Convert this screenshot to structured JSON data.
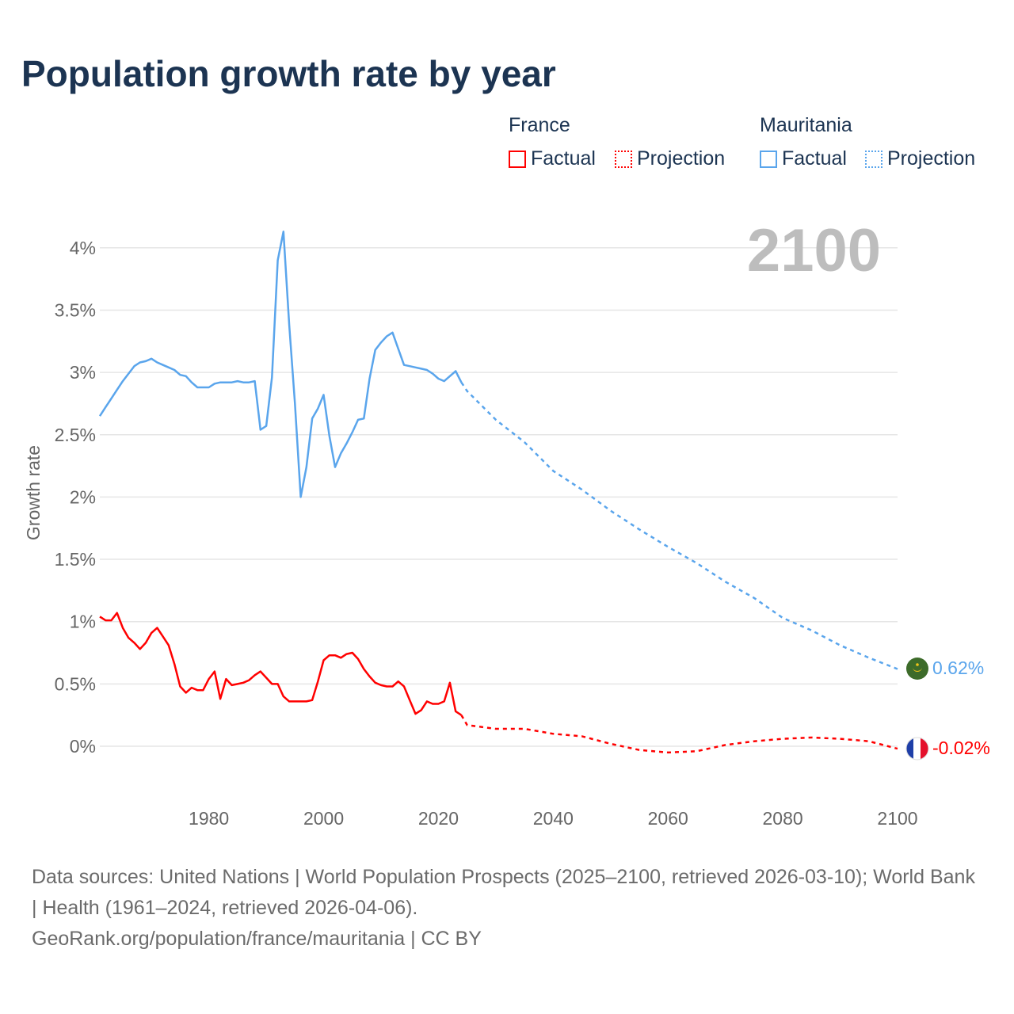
{
  "title": "Population growth rate by year",
  "legend": {
    "groups": [
      {
        "name": "France",
        "factual": "Factual",
        "projection": "Projection",
        "color": "#ff0000"
      },
      {
        "name": "Mauritania",
        "factual": "Factual",
        "projection": "Projection",
        "color": "#5aa5ec"
      }
    ]
  },
  "year_label": "2100",
  "end_labels": {
    "mauritania": "0.62%",
    "france": "-0.02%"
  },
  "source": {
    "line1": "Data sources: United Nations | World Population Prospects (2025–2100, retrieved 2026-03-10); World Bank | Health (1961–2024, retrieved 2026-04-06).",
    "line2": "GeoRank.org/population/france/mauritania | CC BY"
  },
  "chart_data": {
    "type": "line",
    "title": "Population growth rate by year",
    "xlabel": "",
    "ylabel": "Growth rate",
    "xlim": [
      1961,
      2100
    ],
    "ylim": [
      -0.25,
      4.25
    ],
    "x_ticks": [
      1980,
      2000,
      2020,
      2040,
      2060,
      2080,
      2100
    ],
    "x_tick_labels": [
      "1980",
      "2000",
      "2020",
      "2040",
      "2060",
      "2080",
      "2100"
    ],
    "y_ticks": [
      0,
      0.5,
      1,
      1.5,
      2,
      2.5,
      3,
      3.5,
      4
    ],
    "y_tick_labels": [
      "0%",
      "0.5%",
      "1%",
      "1.5%",
      "2%",
      "2.5%",
      "3%",
      "3.5%",
      "4%"
    ],
    "grid": true,
    "legend_position": "top-right",
    "series": [
      {
        "name": "Mauritania Factual",
        "color": "#5aa5ec",
        "style": "solid",
        "x": [
          1961,
          1962,
          1963,
          1964,
          1965,
          1966,
          1967,
          1968,
          1969,
          1970,
          1971,
          1972,
          1973,
          1974,
          1975,
          1976,
          1977,
          1978,
          1979,
          1980,
          1981,
          1982,
          1983,
          1984,
          1985,
          1986,
          1987,
          1988,
          1989,
          1990,
          1991,
          1992,
          1993,
          1994,
          1995,
          1996,
          1997,
          1998,
          1999,
          2000,
          2001,
          2002,
          2003,
          2004,
          2005,
          2006,
          2007,
          2008,
          2009,
          2010,
          2011,
          2012,
          2013,
          2014,
          2015,
          2016,
          2017,
          2018,
          2019,
          2020,
          2021,
          2022,
          2023,
          2024
        ],
        "y": [
          2.65,
          2.72,
          2.79,
          2.86,
          2.93,
          2.99,
          3.05,
          3.08,
          3.09,
          3.11,
          3.08,
          3.06,
          3.04,
          3.02,
          2.98,
          2.97,
          2.92,
          2.88,
          2.88,
          2.88,
          2.91,
          2.92,
          2.92,
          2.92,
          2.93,
          2.92,
          2.92,
          2.93,
          2.54,
          2.57,
          2.96,
          3.9,
          4.13,
          3.38,
          2.75,
          2.0,
          2.24,
          2.63,
          2.71,
          2.82,
          2.49,
          2.24,
          2.35,
          2.43,
          2.52,
          2.62,
          2.63,
          2.95,
          3.18,
          3.24,
          3.29,
          3.32,
          3.19,
          3.06,
          3.05,
          3.04,
          3.03,
          3.02,
          2.99,
          2.95,
          2.93,
          2.97,
          3.01,
          2.92
        ]
      },
      {
        "name": "Mauritania Projection",
        "color": "#5aa5ec",
        "style": "dotted",
        "x": [
          2024,
          2025,
          2030,
          2035,
          2040,
          2045,
          2050,
          2055,
          2060,
          2065,
          2070,
          2075,
          2080,
          2085,
          2090,
          2095,
          2100
        ],
        "y": [
          2.92,
          2.85,
          2.62,
          2.44,
          2.21,
          2.06,
          1.89,
          1.74,
          1.6,
          1.47,
          1.32,
          1.19,
          1.03,
          0.93,
          0.81,
          0.71,
          0.62
        ]
      },
      {
        "name": "France Factual",
        "color": "#ff0000",
        "style": "solid",
        "x": [
          1961,
          1962,
          1963,
          1964,
          1965,
          1966,
          1967,
          1968,
          1969,
          1970,
          1971,
          1972,
          1973,
          1974,
          1975,
          1976,
          1977,
          1978,
          1979,
          1980,
          1981,
          1982,
          1983,
          1984,
          1985,
          1986,
          1987,
          1988,
          1989,
          1990,
          1991,
          1992,
          1993,
          1994,
          1995,
          1996,
          1997,
          1998,
          1999,
          2000,
          2001,
          2002,
          2003,
          2004,
          2005,
          2006,
          2007,
          2008,
          2009,
          2010,
          2011,
          2012,
          2013,
          2014,
          2015,
          2016,
          2017,
          2018,
          2019,
          2020,
          2021,
          2022,
          2023,
          2024
        ],
        "y": [
          1.04,
          1.01,
          1.01,
          1.07,
          0.95,
          0.87,
          0.83,
          0.78,
          0.83,
          0.91,
          0.95,
          0.88,
          0.81,
          0.66,
          0.48,
          0.43,
          0.47,
          0.45,
          0.45,
          0.54,
          0.6,
          0.38,
          0.54,
          0.49,
          0.5,
          0.51,
          0.53,
          0.57,
          0.6,
          0.55,
          0.5,
          0.5,
          0.4,
          0.36,
          0.36,
          0.36,
          0.36,
          0.37,
          0.52,
          0.69,
          0.73,
          0.73,
          0.71,
          0.74,
          0.75,
          0.7,
          0.62,
          0.56,
          0.51,
          0.49,
          0.48,
          0.48,
          0.52,
          0.48,
          0.37,
          0.26,
          0.29,
          0.36,
          0.34,
          0.34,
          0.36,
          0.51,
          0.28,
          0.25
        ]
      },
      {
        "name": "France Projection",
        "color": "#ff0000",
        "style": "dotted",
        "x": [
          2024,
          2025,
          2030,
          2035,
          2040,
          2045,
          2050,
          2055,
          2060,
          2065,
          2070,
          2075,
          2080,
          2085,
          2090,
          2095,
          2100
        ],
        "y": [
          0.25,
          0.17,
          0.14,
          0.14,
          0.1,
          0.08,
          0.02,
          -0.03,
          -0.05,
          -0.04,
          0.01,
          0.04,
          0.06,
          0.07,
          0.06,
          0.04,
          -0.02
        ]
      }
    ]
  }
}
